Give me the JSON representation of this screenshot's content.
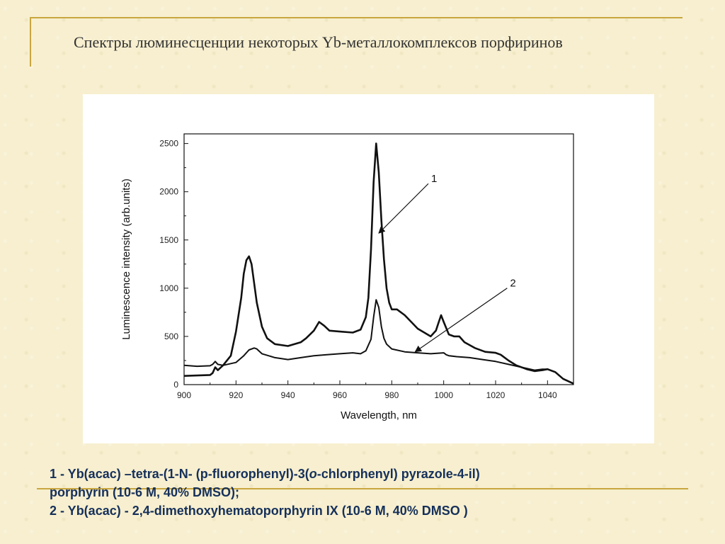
{
  "slide": {
    "title": "Спектры люминесценции некоторых Yb-металлокомплексов порфиринов",
    "caption": {
      "line1_a": "1 - Yb(acac) –tetra-(1-N- (p-fluorophenyl)-3(",
      "line1_italic": "o",
      "line1_b": "-chlorphenyl) pyrazole-4-il)",
      "line2": "porphyrin  (10-6 M,  40% DMSO);",
      "line3": "2 - Yb(acac) - 2,4-dimethoxyhematoporphyrin IX (10-6 M,  40% DMSO )"
    },
    "colors": {
      "background": "#f7efcf",
      "rule": "#c9a640",
      "caption_text": "#16305a",
      "series": "#111111"
    }
  },
  "chart_data": {
    "type": "line",
    "title": "",
    "xlabel": "Wavelength, nm",
    "ylabel": "Luminescence intensity (arb.units)",
    "xlim": [
      900,
      1050
    ],
    "ylim": [
      0,
      2600
    ],
    "xticks": [
      900,
      920,
      940,
      960,
      980,
      1000,
      1020,
      1040
    ],
    "yticks": [
      0,
      500,
      1000,
      1500,
      2000,
      2500
    ],
    "grid": false,
    "legend": "none",
    "series": [
      {
        "name": "1",
        "color": "#111111",
        "x": [
          900,
          905,
          910,
          911,
          912,
          913,
          915,
          918,
          920,
          922,
          923,
          924,
          925,
          926,
          927,
          928,
          930,
          932,
          935,
          940,
          945,
          947,
          950,
          952,
          954,
          956,
          960,
          965,
          968,
          970,
          971,
          972,
          973,
          974,
          975,
          976,
          977,
          978,
          979,
          980,
          982,
          985,
          990,
          995,
          997,
          998,
          999,
          1000,
          1002,
          1004,
          1005,
          1006,
          1008,
          1012,
          1016,
          1020,
          1022,
          1025,
          1028,
          1032,
          1035,
          1038,
          1040,
          1043,
          1046,
          1050
        ],
        "y": [
          90,
          95,
          100,
          120,
          180,
          150,
          200,
          300,
          550,
          900,
          1150,
          1290,
          1330,
          1250,
          1050,
          850,
          600,
          480,
          420,
          400,
          440,
          480,
          560,
          650,
          610,
          560,
          550,
          540,
          570,
          700,
          900,
          1400,
          2100,
          2500,
          2200,
          1700,
          1300,
          1000,
          850,
          780,
          780,
          720,
          580,
          500,
          560,
          640,
          720,
          650,
          520,
          500,
          500,
          500,
          440,
          380,
          340,
          330,
          310,
          250,
          200,
          160,
          140,
          150,
          160,
          130,
          60,
          10
        ]
      },
      {
        "name": "2",
        "color": "#111111",
        "x": [
          900,
          905,
          910,
          911,
          912,
          913,
          915,
          920,
          923,
          925,
          927,
          928,
          930,
          935,
          940,
          945,
          950,
          955,
          960,
          965,
          968,
          970,
          972,
          973,
          974,
          975,
          976,
          977,
          978,
          980,
          985,
          990,
          995,
          1000,
          1001,
          1002,
          1005,
          1010,
          1015,
          1020,
          1025,
          1030,
          1035,
          1038,
          1040,
          1043,
          1046,
          1050
        ],
        "y": [
          200,
          190,
          195,
          210,
          240,
          210,
          200,
          230,
          300,
          360,
          380,
          370,
          320,
          280,
          260,
          280,
          300,
          310,
          320,
          330,
          320,
          350,
          470,
          700,
          880,
          800,
          600,
          480,
          420,
          370,
          340,
          330,
          320,
          330,
          310,
          300,
          290,
          280,
          260,
          240,
          210,
          180,
          150,
          160,
          160,
          130,
          60,
          10
        ]
      }
    ],
    "annotations": [
      {
        "text": "1",
        "target_x": 975,
        "target_y": 1570
      },
      {
        "text": "2",
        "target_x": 989,
        "target_y": 340
      }
    ]
  }
}
